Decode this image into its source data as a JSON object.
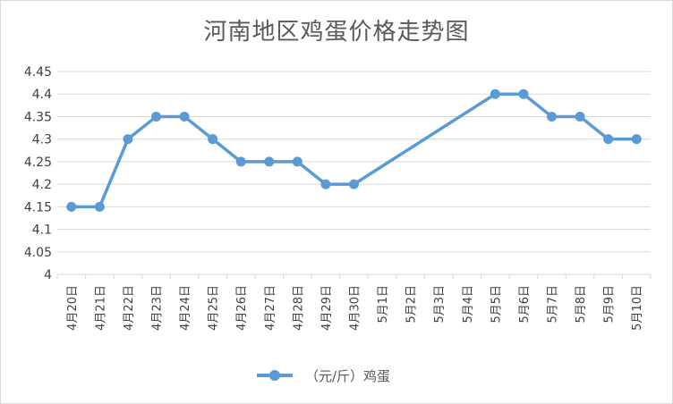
{
  "chart_data": {
    "type": "line",
    "title": "河南地区鸡蛋价格走势图",
    "xlabel": "",
    "ylabel": "",
    "categories": [
      "4月20日",
      "4月21日",
      "4月22日",
      "4月23日",
      "4月24日",
      "4月25日",
      "4月26日",
      "4月27日",
      "4月28日",
      "4月29日",
      "4月30日",
      "5月1日",
      "5月2日",
      "5月3日",
      "5月4日",
      "5月5日",
      "5月6日",
      "5月7日",
      "5月8日",
      "5月9日",
      "5月10日"
    ],
    "series": [
      {
        "name": "（元/斤）鸡蛋",
        "color": "#5b9bd5",
        "values": [
          4.15,
          4.15,
          4.3,
          4.35,
          4.35,
          4.3,
          4.25,
          4.25,
          4.25,
          4.2,
          4.2,
          null,
          null,
          null,
          null,
          4.4,
          4.4,
          4.35,
          4.35,
          4.3,
          4.3
        ]
      }
    ],
    "ylim": [
      4,
      4.45
    ],
    "yticks": [
      "4",
      "4.05",
      "4.1",
      "4.15",
      "4.2",
      "4.25",
      "4.3",
      "4.35",
      "4.4",
      "4.45"
    ],
    "gaps": "connect",
    "grid": true,
    "legend": "bottom"
  }
}
